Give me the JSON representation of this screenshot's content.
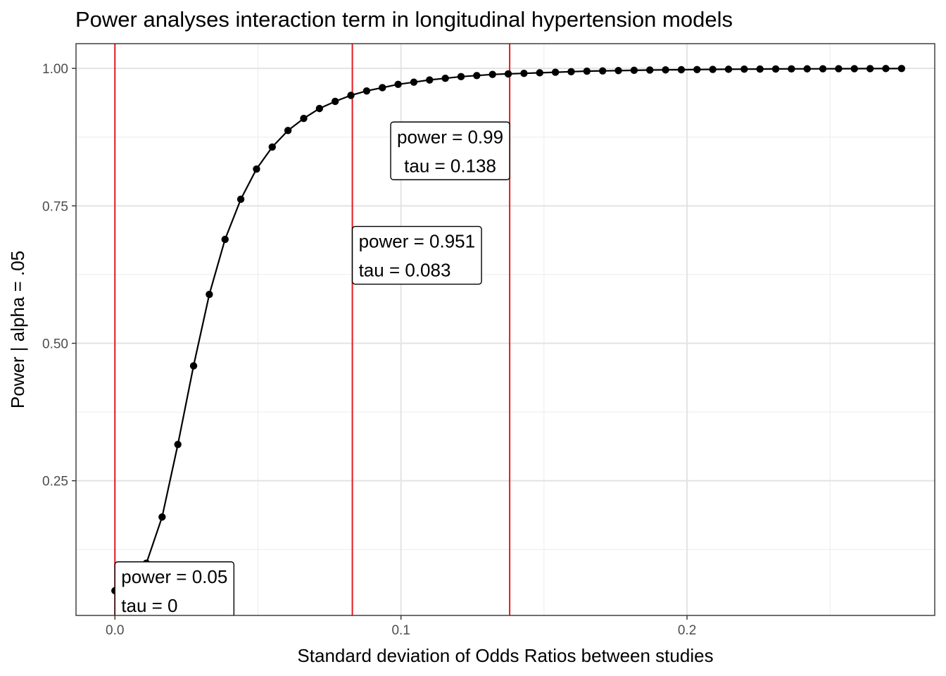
{
  "chart_data": {
    "type": "line",
    "title": "Power analyses interaction term in longitudinal hypertension models",
    "xlabel": "Standard deviation of Odds Ratios between studies",
    "ylabel": "Power | alpha = .05",
    "xlim": [
      -0.0136,
      0.2866
    ],
    "ylim": [
      0.005,
      1.045
    ],
    "x_ticks": [
      0.0,
      0.1,
      0.2
    ],
    "x_tick_labels": [
      "0.0",
      "0.1",
      "0.2"
    ],
    "y_ticks": [
      0.25,
      0.5,
      0.75,
      1.0
    ],
    "y_tick_labels": [
      "0.25",
      "0.50",
      "0.75",
      "1.00"
    ],
    "grid": true,
    "series": [
      {
        "x": [
          0.0,
          0.0055,
          0.011,
          0.0165,
          0.022,
          0.0275,
          0.033,
          0.0385,
          0.044,
          0.0495,
          0.055,
          0.0605,
          0.066,
          0.0715,
          0.077,
          0.0825,
          0.088,
          0.0935,
          0.099,
          0.1045,
          0.11,
          0.1155,
          0.121,
          0.1265,
          0.132,
          0.1375,
          0.143,
          0.1485,
          0.154,
          0.1595,
          0.165,
          0.1705,
          0.176,
          0.1815,
          0.187,
          0.1925,
          0.198,
          0.2035,
          0.209,
          0.2145,
          0.22,
          0.2255,
          0.231,
          0.2365,
          0.242,
          0.2475,
          0.253,
          0.2585,
          0.264,
          0.2695,
          0.275
        ],
        "y": [
          0.05,
          0.075,
          0.1,
          0.184,
          0.316,
          0.459,
          0.589,
          0.689,
          0.762,
          0.817,
          0.857,
          0.887,
          0.909,
          0.927,
          0.94,
          0.951,
          0.959,
          0.965,
          0.971,
          0.975,
          0.979,
          0.982,
          0.985,
          0.987,
          0.989,
          0.99,
          0.991,
          0.992,
          0.993,
          0.994,
          0.995,
          0.9955,
          0.996,
          0.9965,
          0.997,
          0.9973,
          0.9976,
          0.9979,
          0.9982,
          0.9984,
          0.9986,
          0.9988,
          0.999,
          0.9991,
          0.9992,
          0.9993,
          0.9994,
          0.9995,
          0.9996,
          0.9997,
          0.9998
        ],
        "color": "#000000"
      }
    ],
    "vlines": [
      {
        "x": 0.0,
        "color": "#e41a1c"
      },
      {
        "x": 0.083,
        "color": "#e41a1c"
      },
      {
        "x": 0.138,
        "color": "#e41a1c"
      }
    ],
    "annotations": [
      {
        "line1": "power = 0.05",
        "line2": "tau =  0",
        "x": 0.0,
        "y": 0.05,
        "align": "left"
      },
      {
        "line1": "power = 0.951",
        "line2": "tau =  0.083",
        "x": 0.083,
        "y": 0.66,
        "align": "left"
      },
      {
        "line1": "power = 0.99",
        "line2": "tau =  0.138",
        "x": 0.138,
        "y": 0.85,
        "align": "right"
      }
    ]
  }
}
